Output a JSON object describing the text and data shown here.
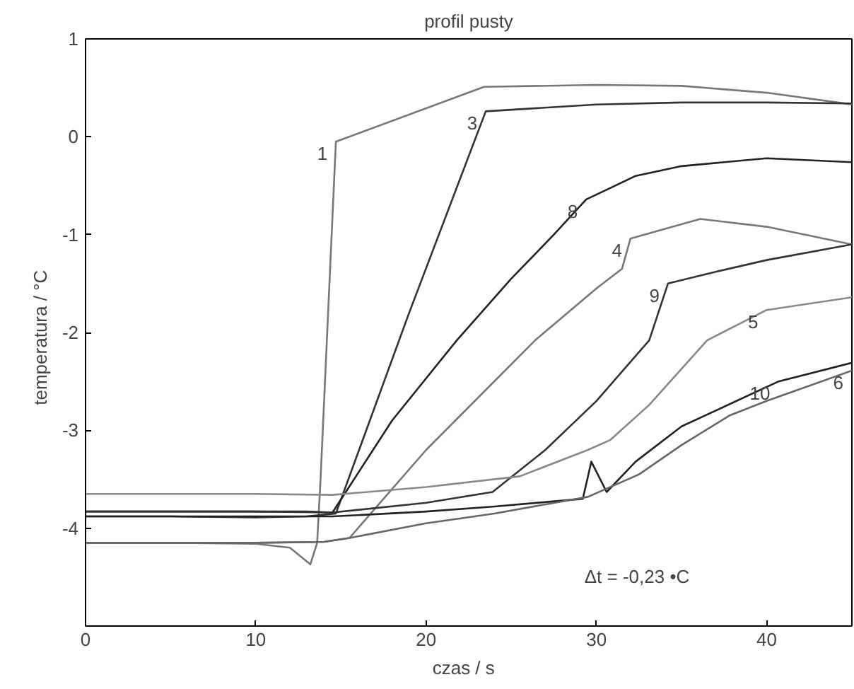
{
  "chart_data": {
    "type": "line",
    "title": "profil pusty",
    "xlabel": "czas  /  s",
    "ylabel": "temperatura  /  °C",
    "xlim": [
      0,
      45
    ],
    "ylim": [
      -5,
      1
    ],
    "xticks": [
      0,
      10,
      20,
      30,
      40
    ],
    "yticks": [
      -4,
      -3,
      -2,
      -1,
      0,
      1
    ],
    "grid": false,
    "line_style": "solid",
    "marker": "none",
    "series": [
      {
        "name": "1",
        "color": "#777777",
        "x": [
          0,
          5,
          10,
          12,
          13.2,
          13.6,
          13.8,
          14.7,
          23.4,
          30,
          35,
          40,
          45
        ],
        "values": [
          -4.15,
          -4.15,
          -4.16,
          -4.2,
          -4.37,
          -4.15,
          -3.5,
          -0.05,
          0.51,
          0.53,
          0.52,
          0.45,
          0.33
        ]
      },
      {
        "name": "3",
        "color": "#333333",
        "x": [
          0,
          5,
          10,
          13,
          14.7,
          19,
          23.5,
          30,
          35,
          40,
          45
        ],
        "values": [
          -3.88,
          -3.88,
          -3.89,
          -3.88,
          -3.85,
          -1.8,
          0.26,
          0.33,
          0.35,
          0.35,
          0.34
        ]
      },
      {
        "name": "8",
        "color": "#222222",
        "x": [
          0,
          5,
          10,
          13,
          14.5,
          18,
          21.8,
          25,
          27.5,
          29.4,
          30.5,
          32.3,
          35,
          40,
          45
        ],
        "values": [
          -3.83,
          -3.83,
          -3.83,
          -3.83,
          -3.84,
          -2.9,
          -2.08,
          -1.45,
          -1.0,
          -0.64,
          -0.55,
          -0.4,
          -0.3,
          -0.22,
          -0.26
        ]
      },
      {
        "name": "4",
        "color": "#777777",
        "x": [
          0,
          10,
          14,
          15.5,
          20,
          26.4,
          30,
          31.5,
          32,
          36.1,
          40,
          45
        ],
        "values": [
          -4.15,
          -4.15,
          -4.14,
          -4.1,
          -3.2,
          -2.08,
          -1.55,
          -1.35,
          -1.04,
          -0.84,
          -0.92,
          -1.1
        ]
      },
      {
        "name": "9",
        "color": "#333333",
        "x": [
          0,
          10,
          14.5,
          20,
          23.9,
          27,
          30,
          33.1,
          34.2,
          37,
          40,
          45
        ],
        "values": [
          -3.83,
          -3.83,
          -3.84,
          -3.74,
          -3.63,
          -3.2,
          -2.7,
          -2.08,
          -1.5,
          -1.38,
          -1.26,
          -1.1
        ]
      },
      {
        "name": "5",
        "color": "#888888",
        "x": [
          0,
          10,
          14.5,
          20,
          25.5,
          29.5,
          30.8,
          33.1,
          36.5,
          40,
          45
        ],
        "values": [
          -3.65,
          -3.65,
          -3.66,
          -3.58,
          -3.47,
          -3.2,
          -3.1,
          -2.74,
          -2.08,
          -1.77,
          -1.64
        ]
      },
      {
        "name": "10",
        "color": "#222222",
        "x": [
          0,
          10,
          14.5,
          20,
          23.9,
          29.2,
          29.7,
          30.6,
          32.3,
          35,
          40.7,
          45
        ],
        "values": [
          -3.88,
          -3.88,
          -3.88,
          -3.83,
          -3.78,
          -3.7,
          -3.32,
          -3.63,
          -3.32,
          -2.96,
          -2.5,
          -2.31
        ]
      },
      {
        "name": "6",
        "color": "#666666",
        "x": [
          0,
          10,
          14,
          15.5,
          20,
          24,
          29.5,
          32.5,
          35,
          37.8,
          40,
          45
        ],
        "values": [
          -4.15,
          -4.15,
          -4.14,
          -4.1,
          -3.95,
          -3.85,
          -3.68,
          -3.45,
          -3.15,
          -2.85,
          -2.7,
          -2.39
        ]
      }
    ],
    "annotations": [
      "Δt = -0,23 •C"
    ]
  }
}
